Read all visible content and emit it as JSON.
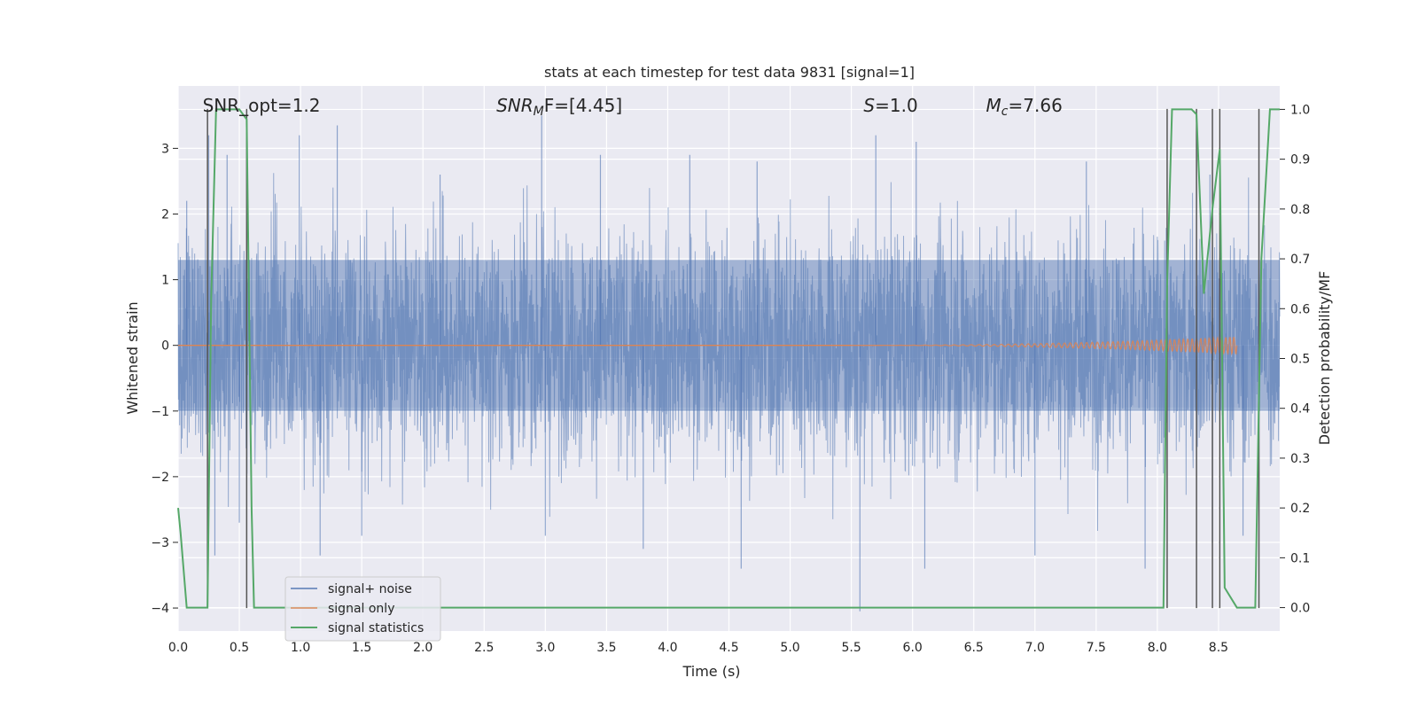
{
  "chart_data": {
    "type": "line",
    "title": "stats at each timestep for test data 9831 [signal=1]",
    "xlabel": "Time (s)",
    "ylabel": "Whitened strain",
    "ylabel_right": "Detection probability/MF",
    "xlim": [
      0.0,
      9.0
    ],
    "ylim": [
      -4.35,
      3.95
    ],
    "ylim_right": [
      -0.047,
      1.047
    ],
    "x_ticks": [
      "0.0",
      "0.5",
      "1.0",
      "1.5",
      "2.0",
      "2.5",
      "3.0",
      "3.5",
      "4.0",
      "4.5",
      "5.0",
      "5.5",
      "6.0",
      "6.5",
      "7.0",
      "7.5",
      "8.0",
      "8.5"
    ],
    "y_ticks": [
      "3",
      "2",
      "1",
      "0",
      "−1",
      "−2",
      "−3",
      "−4"
    ],
    "y_ticks_right": [
      "1.0",
      "0.9",
      "0.8",
      "0.7",
      "0.6",
      "0.5",
      "0.4",
      "0.3",
      "0.2",
      "0.1",
      "0.0"
    ],
    "grid": true,
    "legend_position": "lower-left",
    "annotations": [
      {
        "name": "snr-opt",
        "text": "SNR_opt=1.2",
        "x": 0.2,
        "y": 3.65
      },
      {
        "name": "snr-mf",
        "text": "SNR",
        "sub": "M",
        "tail": "F=[4.45]",
        "x": 2.6,
        "y": 3.65,
        "italic": true
      },
      {
        "name": "s-value",
        "text": "S",
        "tail": "=1.0",
        "x": 5.6,
        "y": 3.65,
        "italic": true
      },
      {
        "name": "mc-value",
        "text": "M",
        "sub": "c",
        "tail": "=7.66",
        "x": 6.6,
        "y": 3.65,
        "italic": true
      }
    ],
    "series": [
      {
        "name": "signal+ noise",
        "color": "#4c72b0",
        "axis": "left",
        "style": "noise",
        "envelope_x": [
          0.0,
          9.0
        ],
        "typical_amplitude": 1.0,
        "peak_high": [
          [
            0.07,
            2.2
          ],
          [
            0.25,
            3.2
          ],
          [
            0.4,
            2.9
          ],
          [
            0.99,
            3.2
          ],
          [
            1.3,
            3.35
          ],
          [
            2.14,
            2.6
          ],
          [
            2.97,
            3.5
          ],
          [
            3.45,
            2.9
          ],
          [
            4.18,
            2.9
          ],
          [
            4.73,
            2.8
          ],
          [
            5.7,
            3.2
          ],
          [
            6.03,
            3.1
          ],
          [
            7.42,
            2.8
          ],
          [
            8.43,
            2.6
          ]
        ],
        "peak_low": [
          [
            0.3,
            -3.2
          ],
          [
            0.5,
            -2.7
          ],
          [
            1.16,
            -3.2
          ],
          [
            1.5,
            -2.9
          ],
          [
            3.0,
            -2.9
          ],
          [
            3.8,
            -3.1
          ],
          [
            4.6,
            -3.4
          ],
          [
            5.57,
            -4.05
          ],
          [
            6.1,
            -3.4
          ],
          [
            7.0,
            -3.2
          ],
          [
            7.9,
            -3.4
          ],
          [
            8.45,
            -3.0
          ],
          [
            8.7,
            -2.9
          ]
        ],
        "dense_upto": 1.3,
        "dense_down_to": -1.0
      },
      {
        "name": "signal only",
        "color": "#dd8452",
        "axis": "left",
        "style": "chirp",
        "start_x": 5.5,
        "end_x": 8.65,
        "max_amplitude": 0.13
      },
      {
        "name": "signal statistics",
        "color": "#55a868",
        "axis": "right",
        "x": [
          0.0,
          0.02,
          0.07,
          0.15,
          0.24,
          0.27,
          0.31,
          0.5,
          0.56,
          0.6,
          0.62,
          0.65,
          1.0,
          2.0,
          3.0,
          4.0,
          5.0,
          6.0,
          7.0,
          7.9,
          8.0,
          8.05,
          8.08,
          8.12,
          8.2,
          8.28,
          8.32,
          8.38,
          8.45,
          8.51,
          8.55,
          8.65,
          8.75,
          8.8,
          8.85,
          8.92,
          9.0
        ],
        "y": [
          0.2,
          0.15,
          0.0,
          0.0,
          0.0,
          0.62,
          1.0,
          1.0,
          0.98,
          0.2,
          0.0,
          0.0,
          0.0,
          0.0,
          0.0,
          0.0,
          0.0,
          0.0,
          0.0,
          0.0,
          0.0,
          0.0,
          0.65,
          1.0,
          1.0,
          1.0,
          0.99,
          0.63,
          0.8,
          0.92,
          0.04,
          0.0,
          0.0,
          0.0,
          0.7,
          1.0,
          1.0
        ]
      }
    ],
    "vertical_markers": {
      "color": "#555555",
      "x": [
        0.24,
        0.56,
        8.08,
        8.32,
        8.45,
        8.51,
        8.83
      ],
      "y_top": 3.6,
      "y_bottom": -4.0
    }
  }
}
